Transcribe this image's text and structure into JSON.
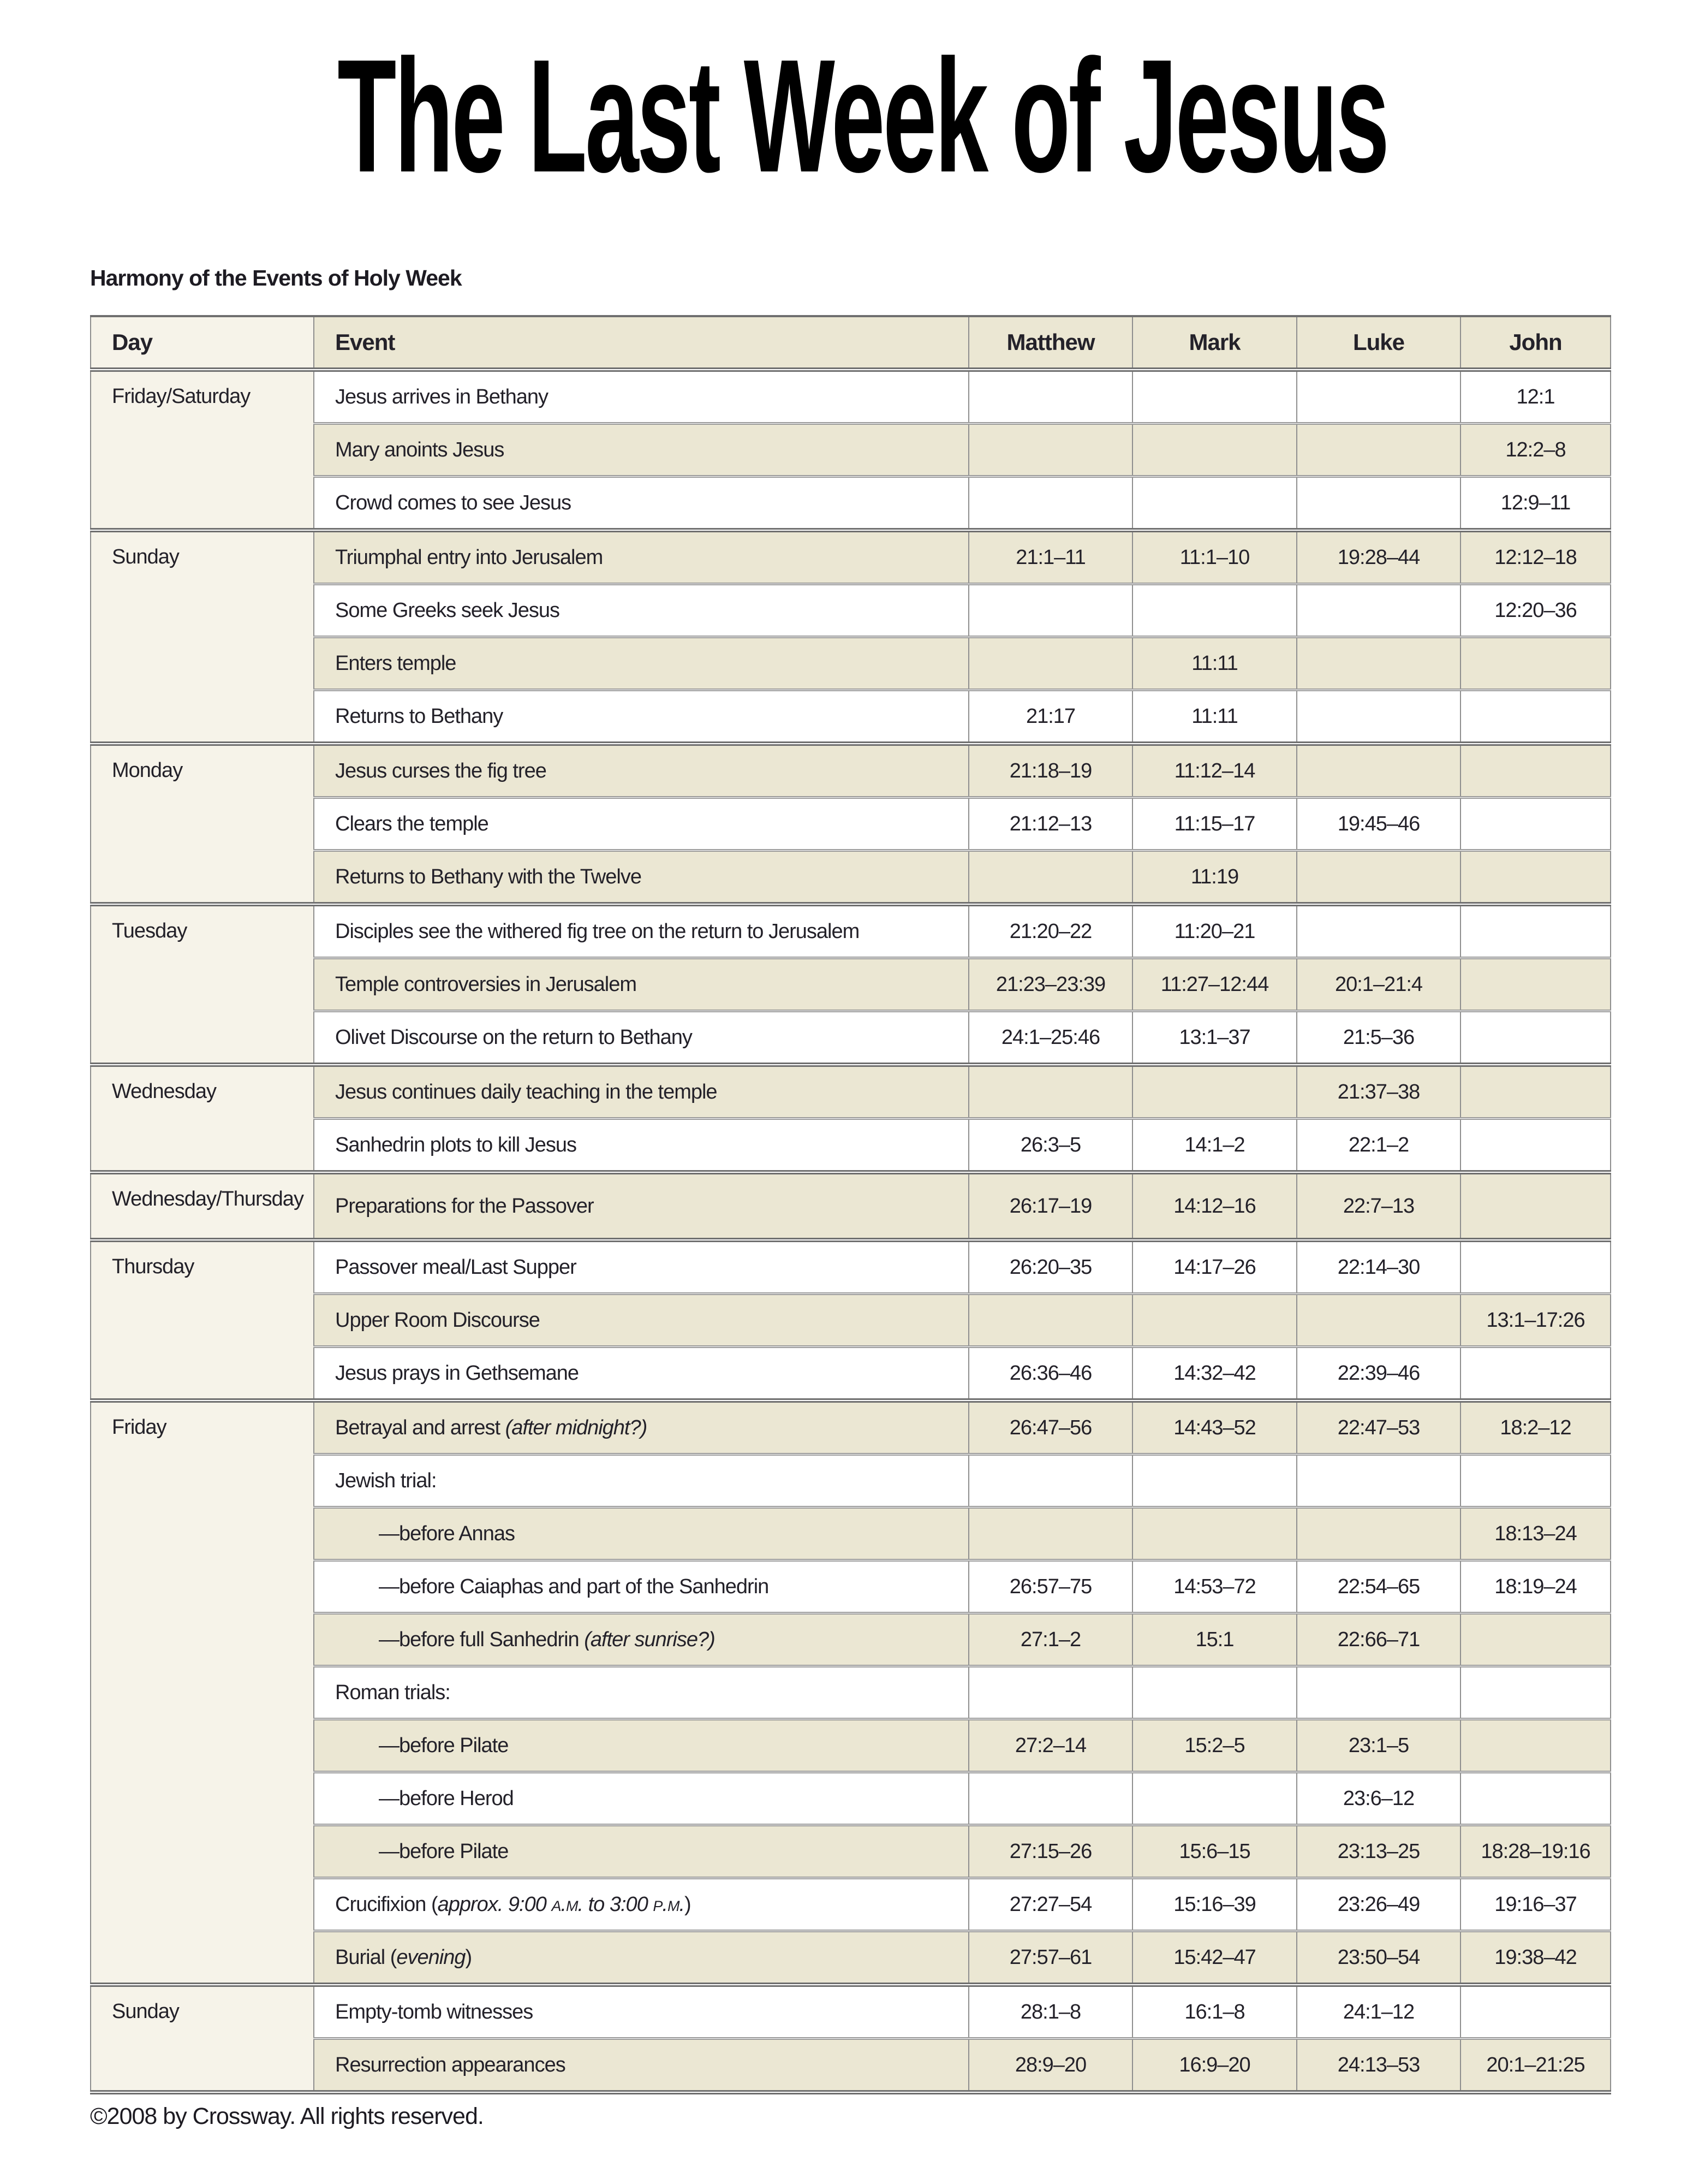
{
  "page": {
    "title": "The Last Week of Jesus",
    "subtitle": "Harmony of the Events of Holy Week",
    "footer": "©2008 by Crossway. All rights reserved."
  },
  "colors": {
    "row_beige": "#ebe7d3",
    "day_column_cream": "#f6f3e9",
    "grid_border_gray": "#8e8e8e",
    "separator_dark_gray": "#6f6f6f",
    "text": "#232129"
  },
  "table": {
    "headers": [
      "Day",
      "Event",
      "Matthew",
      "Mark",
      "Luke",
      "John"
    ],
    "groups": [
      {
        "day": "Friday/Saturday",
        "rows": [
          {
            "event": [
              {
                "t": "Jesus arrives in Bethany"
              }
            ],
            "matthew": "",
            "mark": "",
            "luke": "",
            "john": "12:1"
          },
          {
            "event": [
              {
                "t": "Mary anoints Jesus"
              }
            ],
            "matthew": "",
            "mark": "",
            "luke": "",
            "john": "12:2–8"
          },
          {
            "event": [
              {
                "t": "Crowd comes to see Jesus"
              }
            ],
            "matthew": "",
            "mark": "",
            "luke": "",
            "john": "12:9–11"
          }
        ]
      },
      {
        "day": "Sunday",
        "rows": [
          {
            "event": [
              {
                "t": "Triumphal entry into Jerusalem"
              }
            ],
            "matthew": "21:1–11",
            "mark": "11:1–10",
            "luke": "19:28–44",
            "john": "12:12–18"
          },
          {
            "event": [
              {
                "t": "Some Greeks seek Jesus"
              }
            ],
            "matthew": "",
            "mark": "",
            "luke": "",
            "john": "12:20–36"
          },
          {
            "event": [
              {
                "t": "Enters temple"
              }
            ],
            "matthew": "",
            "mark": "11:11",
            "luke": "",
            "john": ""
          },
          {
            "event": [
              {
                "t": "Returns to Bethany"
              }
            ],
            "matthew": "21:17",
            "mark": "11:11",
            "luke": "",
            "john": ""
          }
        ]
      },
      {
        "day": "Monday",
        "rows": [
          {
            "event": [
              {
                "t": "Jesus curses the fig tree"
              }
            ],
            "matthew": "21:18–19",
            "mark": "11:12–14",
            "luke": "",
            "john": ""
          },
          {
            "event": [
              {
                "t": "Clears the temple"
              }
            ],
            "matthew": "21:12–13",
            "mark": "11:15–17",
            "luke": "19:45–46",
            "john": ""
          },
          {
            "event": [
              {
                "t": "Returns to Bethany with the Twelve"
              }
            ],
            "matthew": "",
            "mark": "11:19",
            "luke": "",
            "john": ""
          }
        ]
      },
      {
        "day": "Tuesday",
        "rows": [
          {
            "event": [
              {
                "t": "Disciples see the withered fig tree on the return to Jerusalem"
              }
            ],
            "matthew": "21:20–22",
            "mark": "11:20–21",
            "luke": "",
            "john": ""
          },
          {
            "event": [
              {
                "t": "Temple controversies in Jerusalem"
              }
            ],
            "matthew": "21:23–23:39",
            "mark": "11:27–12:44",
            "luke": "20:1–21:4",
            "john": ""
          },
          {
            "event": [
              {
                "t": "Olivet Discourse on the return to Bethany"
              }
            ],
            "matthew": "24:1–25:46",
            "mark": "13:1–37",
            "luke": "21:5–36",
            "john": ""
          }
        ]
      },
      {
        "day": "Wednesday",
        "rows": [
          {
            "event": [
              {
                "t": "Jesus continues daily teaching in the temple"
              }
            ],
            "matthew": "",
            "mark": "",
            "luke": "21:37–38",
            "john": ""
          },
          {
            "event": [
              {
                "t": "Sanhedrin plots to kill Jesus"
              }
            ],
            "matthew": "26:3–5",
            "mark": "14:1–2",
            "luke": "22:1–2",
            "john": ""
          }
        ]
      },
      {
        "day": "Wednesday/Thursday",
        "rows": [
          {
            "event": [
              {
                "t": "Preparations for the Passover"
              }
            ],
            "matthew": "26:17–19",
            "mark": "14:12–16",
            "luke": "22:7–13",
            "john": ""
          }
        ]
      },
      {
        "day": "Thursday",
        "rows": [
          {
            "event": [
              {
                "t": "Passover meal/Last Supper"
              }
            ],
            "matthew": "26:20–35",
            "mark": "14:17–26",
            "luke": "22:14–30",
            "john": ""
          },
          {
            "event": [
              {
                "t": "Upper Room Discourse"
              }
            ],
            "matthew": "",
            "mark": "",
            "luke": "",
            "john": "13:1–17:26"
          },
          {
            "event": [
              {
                "t": "Jesus prays in Gethsemane"
              }
            ],
            "matthew": "26:36–46",
            "mark": "14:32–42",
            "luke": "22:39–46",
            "john": ""
          }
        ]
      },
      {
        "day": "Friday",
        "rows": [
          {
            "event": [
              {
                "t": "Betrayal and arrest "
              },
              {
                "t": "(after midnight?)",
                "i": true
              }
            ],
            "matthew": "26:47–56",
            "mark": "14:43–52",
            "luke": "22:47–53",
            "john": "18:2–12"
          },
          {
            "event": [
              {
                "t": "Jewish trial:"
              }
            ],
            "matthew": "",
            "mark": "",
            "luke": "",
            "john": ""
          },
          {
            "indent": true,
            "event": [
              {
                "t": "—before Annas"
              }
            ],
            "matthew": "",
            "mark": "",
            "luke": "",
            "john": "18:13–24"
          },
          {
            "indent": true,
            "event": [
              {
                "t": "—before Caiaphas and part of the Sanhedrin"
              }
            ],
            "matthew": "26:57–75",
            "mark": "14:53–72",
            "luke": "22:54–65",
            "john": "18:19–24"
          },
          {
            "indent": true,
            "event": [
              {
                "t": "—before full Sanhedrin "
              },
              {
                "t": "(after sunrise?)",
                "i": true
              }
            ],
            "matthew": "27:1–2",
            "mark": "15:1",
            "luke": "22:66–71",
            "john": ""
          },
          {
            "event": [
              {
                "t": "Roman trials:"
              }
            ],
            "matthew": "",
            "mark": "",
            "luke": "",
            "john": ""
          },
          {
            "indent": true,
            "event": [
              {
                "t": "—before Pilate"
              }
            ],
            "matthew": "27:2–14",
            "mark": "15:2–5",
            "luke": "23:1–5",
            "john": ""
          },
          {
            "indent": true,
            "event": [
              {
                "t": "—before Herod"
              }
            ],
            "matthew": "",
            "mark": "",
            "luke": "23:6–12",
            "john": ""
          },
          {
            "indent": true,
            "event": [
              {
                "t": "—before Pilate"
              }
            ],
            "matthew": "27:15–26",
            "mark": "15:6–15",
            "luke": "23:13–25",
            "john": "18:28–19:16"
          },
          {
            "event": [
              {
                "t": "Crucifixion ("
              },
              {
                "t": "approx. 9:00 ",
                "i": true
              },
              {
                "t": "a.m.",
                "i": true,
                "sc": true
              },
              {
                "t": " to 3:00 ",
                "i": true
              },
              {
                "t": "p.m.",
                "i": true,
                "sc": true
              },
              {
                "t": ")"
              }
            ],
            "matthew": "27:27–54",
            "mark": "15:16–39",
            "luke": "23:26–49",
            "john": "19:16–37"
          },
          {
            "event": [
              {
                "t": "Burial ("
              },
              {
                "t": "evening",
                "i": true
              },
              {
                "t": ")"
              }
            ],
            "matthew": "27:57–61",
            "mark": "15:42–47",
            "luke": "23:50–54",
            "john": "19:38–42"
          }
        ]
      },
      {
        "day": "Sunday",
        "rows": [
          {
            "event": [
              {
                "t": "Empty-tomb witnesses"
              }
            ],
            "matthew": "28:1–8",
            "mark": "16:1–8",
            "luke": "24:1–12",
            "john": ""
          },
          {
            "event": [
              {
                "t": "Resurrection appearances"
              }
            ],
            "matthew": "28:9–20",
            "mark": "16:9–20",
            "luke": "24:13–53",
            "john": "20:1–21:25"
          }
        ]
      }
    ]
  }
}
